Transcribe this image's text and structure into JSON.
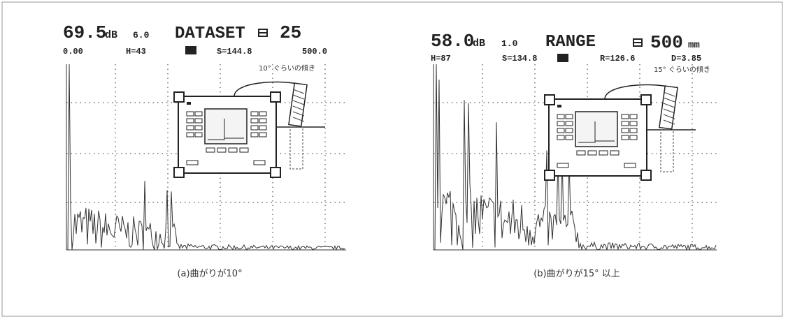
{
  "panels": [
    {
      "gain": "69.5",
      "gain_unit": "dB",
      "param": "6.0",
      "mode": "DATASET",
      "value": "25",
      "status": [
        "0.00",
        "H=43",
        "S=144.8",
        "500.0"
      ],
      "note": "10° ぐらいの傾き",
      "caption": "(a)曲がりが10°"
    },
    {
      "gain": "58.0",
      "gain_unit": "dB",
      "param": "1.0",
      "mode": "RANGE",
      "value": "500",
      "value_unit": "mm",
      "status": [
        "H=87",
        "S=134.8",
        "R=126.6",
        "D=3.85"
      ],
      "note": "15° ぐらいの傾き",
      "caption": "(b)曲がりが15° 以上"
    }
  ]
}
